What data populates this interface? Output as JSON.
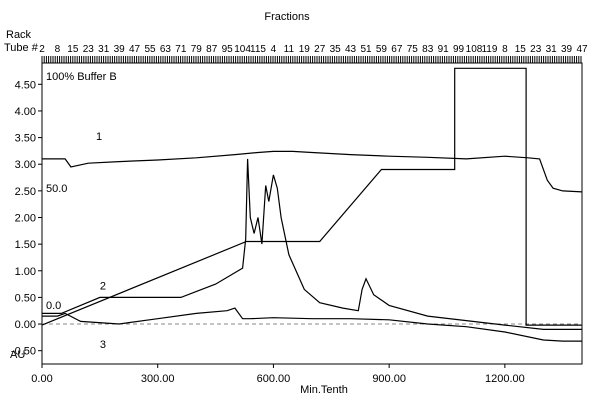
{
  "chart_data": {
    "type": "line",
    "top_axis_title": "Fractions",
    "rack_label": "Rack",
    "tube_label": "Tube #",
    "tube_numbers": [
      "2",
      "8",
      "15",
      "23",
      "31",
      "39",
      "47",
      "55",
      "63",
      "71",
      "79",
      "87",
      "95",
      "104",
      "115",
      "4",
      "11",
      "19",
      "27",
      "35",
      "43",
      "51",
      "59",
      "67",
      "75",
      "83",
      "91",
      "99",
      "108",
      "119",
      "8",
      "15",
      "23",
      "31",
      "39",
      "47"
    ],
    "xlabel": "Min.Tenth",
    "ylabel": "AU",
    "xlim": [
      0,
      1400
    ],
    "ylim": [
      -0.75,
      4.9
    ],
    "xticks": [
      0,
      300,
      600,
      900,
      1200
    ],
    "xtick_labels": [
      "0.00",
      "300.00",
      "600.00",
      "900.00",
      "1200.00"
    ],
    "yticks": [
      4.5,
      4.0,
      3.5,
      3.0,
      2.5,
      2.0,
      1.5,
      1.0,
      0.5,
      0.0,
      -0.5
    ],
    "ytick_labels": [
      "4.50",
      "4.00",
      "3.50",
      "3.00",
      "2.50",
      "2.00",
      "1.50",
      "1.00",
      "0.50",
      "0.00",
      "-0.50"
    ],
    "annotations": {
      "buffer": "100% Buffer B",
      "buffer_mid": "50.0",
      "buffer_zero": "0.0"
    },
    "series": [
      {
        "label": "1",
        "label_at": [
          140,
          3.45
        ],
        "x": [
          0,
          60,
          75,
          120,
          200,
          300,
          400,
          500,
          560,
          600,
          650,
          700,
          800,
          900,
          1000,
          1100,
          1200,
          1260,
          1290,
          1310,
          1325,
          1350,
          1400
        ],
        "y": [
          3.1,
          3.1,
          2.95,
          3.02,
          3.05,
          3.08,
          3.12,
          3.18,
          3.22,
          3.24,
          3.24,
          3.22,
          3.18,
          3.15,
          3.13,
          3.1,
          3.15,
          3.12,
          3.1,
          2.7,
          2.55,
          2.5,
          2.48
        ]
      },
      {
        "label": "2",
        "label_at": [
          150,
          0.65
        ],
        "x": [
          0,
          50,
          150,
          360,
          450,
          520,
          528,
          533,
          540,
          550,
          560,
          570,
          580,
          588,
          600,
          610,
          620,
          640,
          680,
          720,
          780,
          820,
          830,
          840,
          860,
          900,
          1000,
          1200,
          1300,
          1400
        ],
        "y": [
          0.2,
          0.2,
          0.5,
          0.5,
          0.75,
          1.05,
          1.6,
          3.1,
          2.0,
          1.7,
          2.0,
          1.5,
          2.6,
          2.3,
          2.8,
          2.55,
          2.0,
          1.3,
          0.65,
          0.4,
          0.3,
          0.25,
          0.65,
          0.85,
          0.55,
          0.35,
          0.15,
          -0.02,
          -0.1,
          -0.1
        ]
      },
      {
        "label": "3",
        "label_at": [
          150,
          -0.45
        ],
        "x": [
          0,
          40,
          60,
          100,
          200,
          300,
          400,
          480,
          500,
          520,
          540,
          600,
          700,
          800,
          900,
          1000,
          1100,
          1200,
          1300,
          1350,
          1400
        ],
        "y": [
          0.15,
          0.15,
          0.2,
          0.05,
          0.0,
          0.1,
          0.2,
          0.25,
          0.3,
          0.1,
          0.1,
          0.12,
          0.1,
          0.1,
          0.08,
          0.0,
          -0.05,
          -0.15,
          -0.3,
          -0.32,
          -0.32
        ]
      }
    ],
    "gradient": {
      "x": [
        0,
        530,
        720,
        880,
        1070,
        1070,
        1255,
        1255,
        1400
      ],
      "y": [
        -0.02,
        1.55,
        1.55,
        2.9,
        2.9,
        4.8,
        4.8,
        -0.02,
        -0.02
      ]
    },
    "baseline": 0.0
  }
}
